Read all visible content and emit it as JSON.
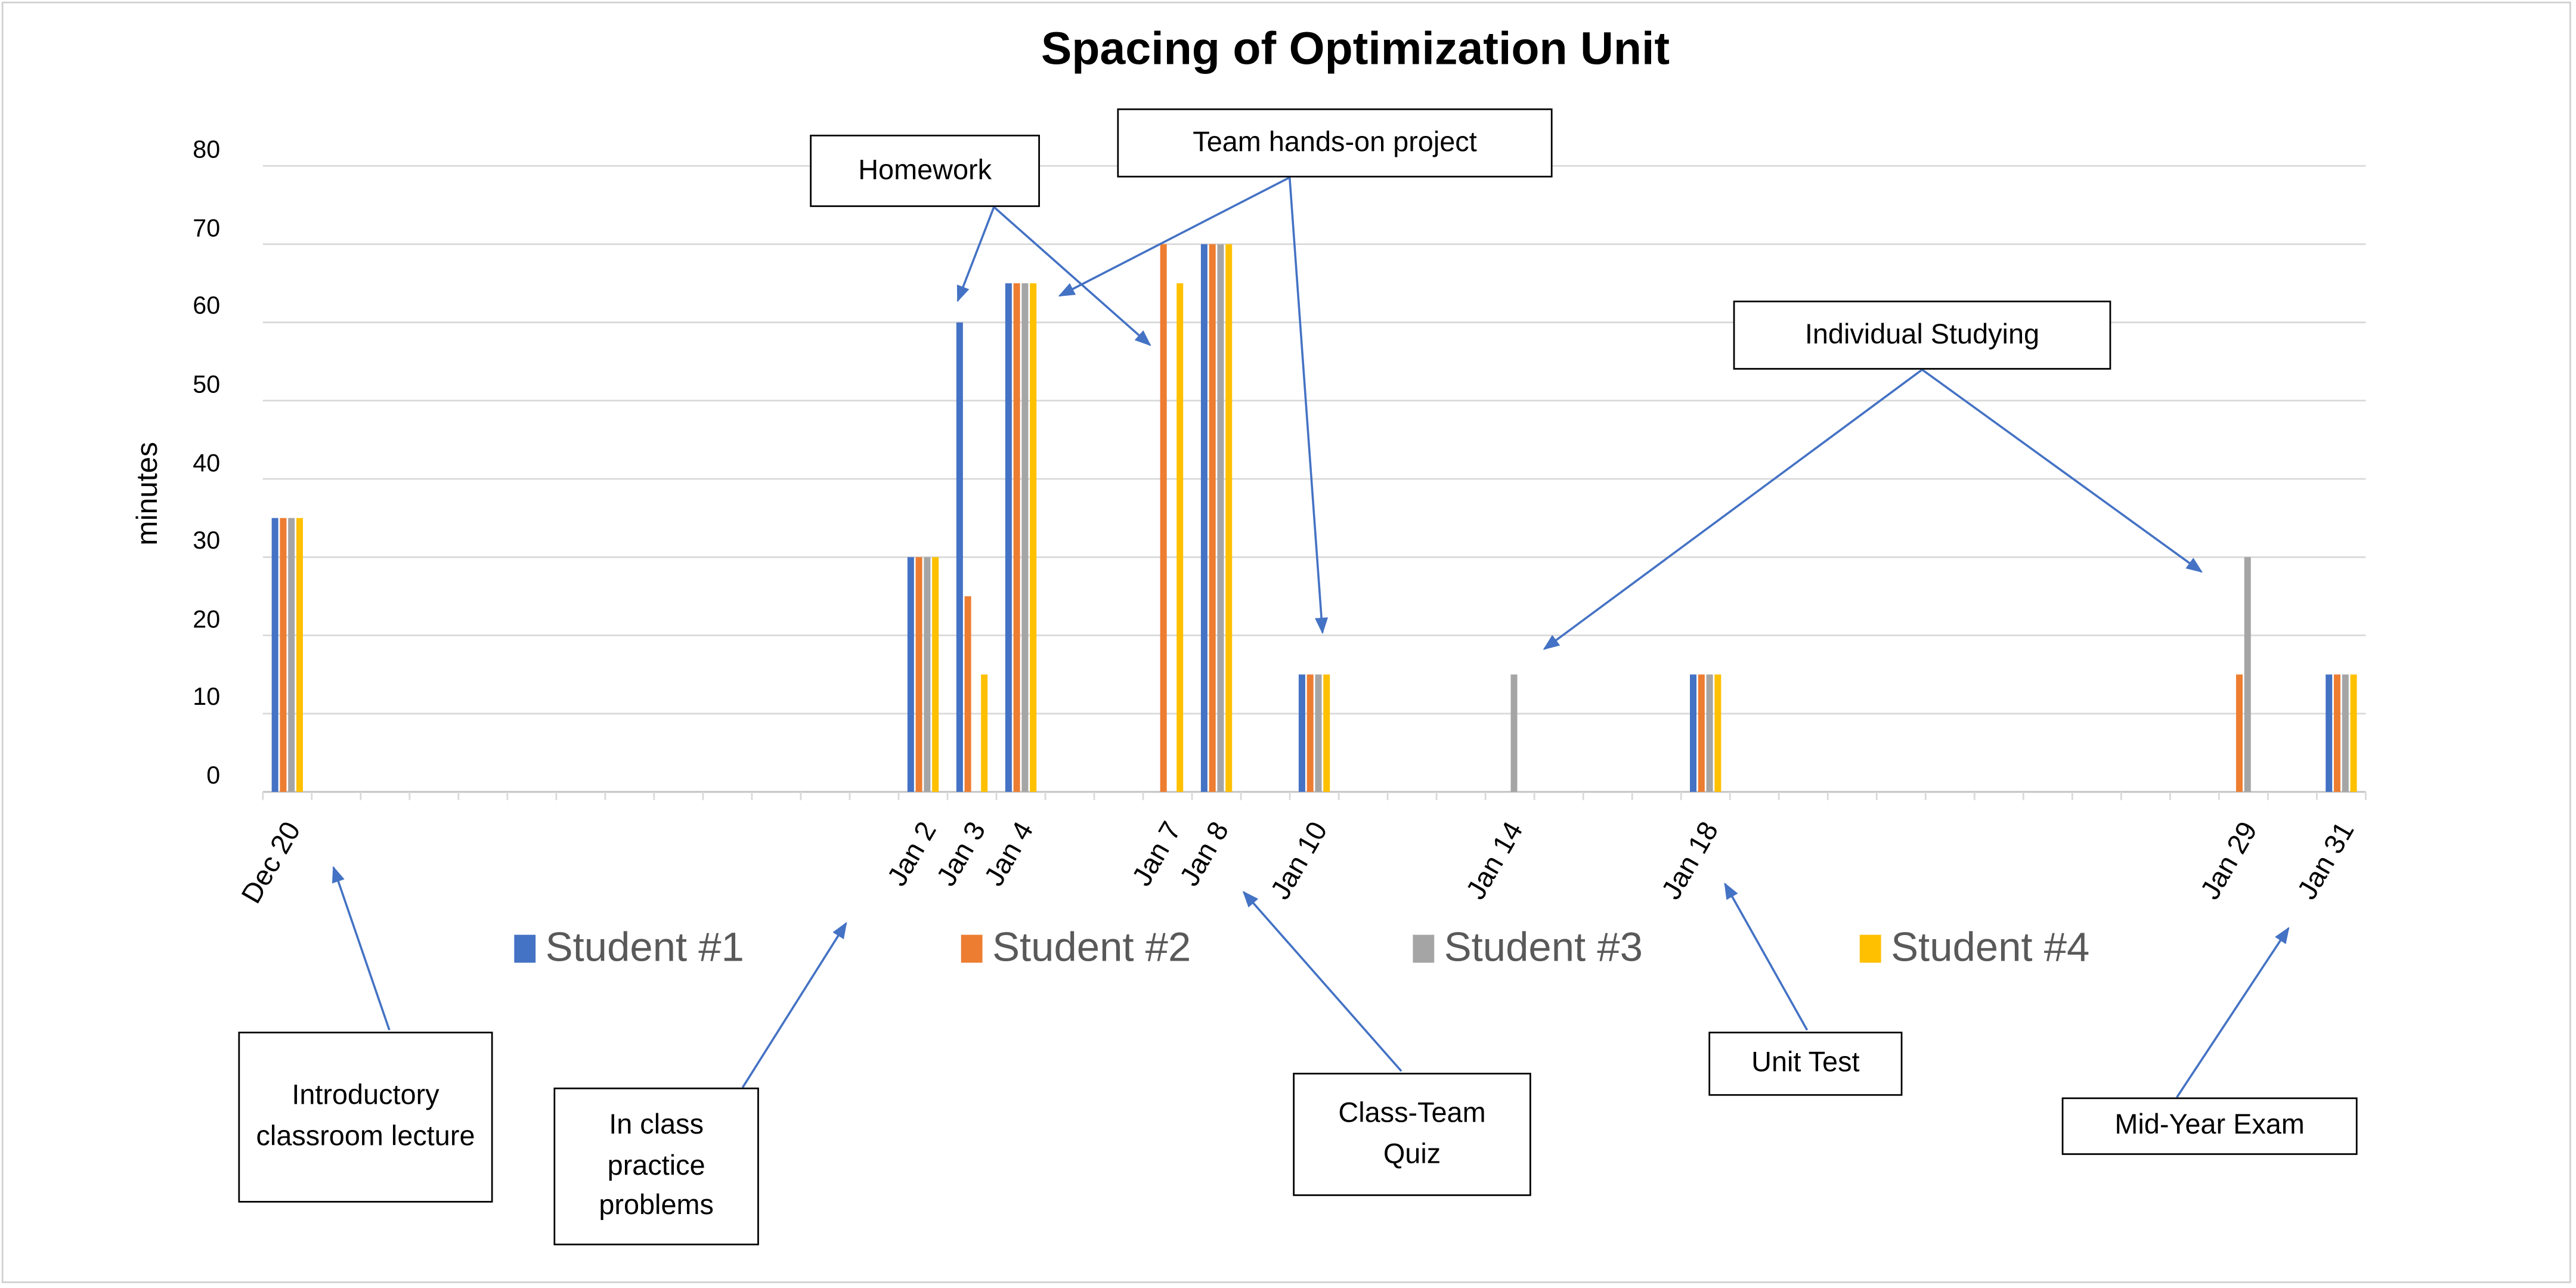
{
  "chart_data": {
    "type": "bar",
    "title": "Spacing of Optimization Unit",
    "xlabel": "",
    "ylabel": "minutes",
    "ylim": [
      0,
      80
    ],
    "yticks": [
      0,
      10,
      20,
      30,
      40,
      50,
      60,
      70,
      80
    ],
    "grid": true,
    "legend_placement": "bottom",
    "x_axis": "date",
    "xlim": [
      "Dec 20",
      "Jan 31"
    ],
    "categories": [
      "Dec 20",
      "Jan 2",
      "Jan 3",
      "Jan 4",
      "Jan 7",
      "Jan 8",
      "Jan 10",
      "Jan 14",
      "Jan 18",
      "Jan 29",
      "Jan 31"
    ],
    "category_day_offsets": [
      0,
      13,
      14,
      15,
      18,
      19,
      21,
      25,
      29,
      40,
      42
    ],
    "series": [
      {
        "name": "Student #1",
        "color": "#4472C4",
        "values": [
          35,
          30,
          60,
          65,
          0,
          70,
          15,
          0,
          15,
          0,
          15
        ]
      },
      {
        "name": "Student #2",
        "color": "#ED7D31",
        "values": [
          35,
          30,
          25,
          65,
          70,
          70,
          15,
          0,
          15,
          15,
          15
        ]
      },
      {
        "name": "Student #3",
        "color": "#A5A5A5",
        "values": [
          35,
          30,
          0,
          65,
          0,
          70,
          15,
          15,
          15,
          30,
          15
        ]
      },
      {
        "name": "Student #4",
        "color": "#FFC000",
        "values": [
          35,
          30,
          15,
          65,
          65,
          70,
          15,
          0,
          15,
          0,
          15
        ]
      }
    ],
    "annotations": [
      {
        "text": "Homework",
        "points_to": [
          "Jan 3",
          "Jan 7"
        ]
      },
      {
        "text": "Team hands-on project",
        "points_to": [
          "Jan 4",
          "Jan 10"
        ]
      },
      {
        "text": "Individual Studying",
        "points_to": [
          "Jan 14",
          "Jan 29"
        ]
      },
      {
        "text": "Introductory classroom lecture",
        "points_to": [
          "Dec 20"
        ]
      },
      {
        "text": "In class practice problems",
        "points_to": [
          "Jan 2"
        ]
      },
      {
        "text": "Class-Team Quiz",
        "points_to": [
          "Jan 8"
        ]
      },
      {
        "text": "Unit Test",
        "points_to": [
          "Jan 18"
        ]
      },
      {
        "text": "Mid-Year Exam",
        "points_to": [
          "Jan 31"
        ]
      }
    ],
    "annotation_color": "#4472C4"
  }
}
